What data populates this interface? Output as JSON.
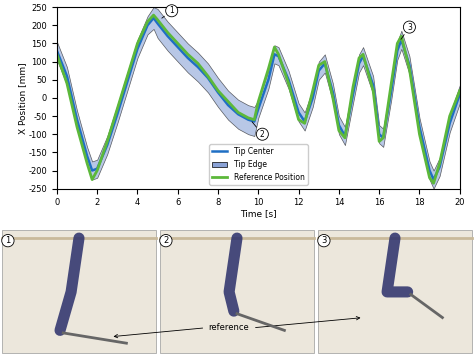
{
  "chart_data": {
    "type": "line",
    "xlabel": "Time [s]",
    "ylabel": "X Position [mm]",
    "x": [
      0,
      0.5,
      1,
      1.5,
      1.75,
      2,
      2.5,
      3,
      3.5,
      4,
      4.5,
      4.8,
      5,
      5.5,
      6,
      6.5,
      7,
      7.5,
      8,
      8.5,
      9,
      9.5,
      9.8,
      10,
      10.5,
      10.8,
      11,
      11.5,
      12,
      12.3,
      12.7,
      13,
      13.3,
      13.7,
      14,
      14.3,
      14.7,
      15,
      15.2,
      15.7,
      16,
      16.2,
      16.6,
      16.9,
      17.1,
      17.5,
      18,
      18.5,
      18.7,
      19,
      19.5,
      20
    ],
    "series": [
      {
        "name": "Tip Center",
        "color": "#1f6fc4",
        "type": "line",
        "values": [
          130,
          60,
          -60,
          -160,
          -200,
          -195,
          -130,
          -45,
          45,
          135,
          200,
          220,
          205,
          170,
          140,
          110,
          85,
          55,
          15,
          -20,
          -45,
          -60,
          -65,
          -30,
          50,
          120,
          115,
          50,
          -40,
          -65,
          0,
          75,
          95,
          15,
          -75,
          -105,
          10,
          95,
          115,
          35,
          -100,
          -110,
          20,
          130,
          160,
          90,
          -80,
          -200,
          -225,
          -190,
          -70,
          10
        ]
      },
      {
        "name": "Tip Edge",
        "color": "#8aa2d6",
        "type": "band",
        "lower": [
          105,
          35,
          -85,
          -185,
          -225,
          -220,
          -155,
          -70,
          20,
          110,
          175,
          190,
          165,
          130,
          100,
          70,
          45,
          15,
          -25,
          -60,
          -85,
          -100,
          -105,
          -55,
          25,
          95,
          90,
          25,
          -65,
          -90,
          -25,
          50,
          70,
          -10,
          -100,
          -130,
          -15,
          70,
          90,
          10,
          -125,
          -135,
          -5,
          105,
          135,
          65,
          -105,
          -225,
          -250,
          -215,
          -95,
          -15
        ],
        "upper": [
          155,
          85,
          -35,
          -135,
          -175,
          -170,
          -105,
          -20,
          70,
          160,
          225,
          250,
          245,
          210,
          180,
          150,
          125,
          95,
          55,
          20,
          -5,
          -20,
          -25,
          -5,
          75,
          145,
          140,
          75,
          -15,
          -40,
          25,
          100,
          120,
          40,
          -50,
          -80,
          35,
          120,
          140,
          60,
          -75,
          -85,
          45,
          155,
          185,
          115,
          -55,
          -175,
          -200,
          -165,
          -45,
          35
        ]
      },
      {
        "name": "Reference Position",
        "color": "#5cb83a",
        "type": "line",
        "values": [
          120,
          40,
          -80,
          -180,
          -225,
          -200,
          -120,
          -30,
          60,
          150,
          210,
          228,
          215,
          180,
          150,
          120,
          95,
          60,
          20,
          -10,
          -40,
          -55,
          -60,
          -10,
          80,
          140,
          120,
          40,
          -60,
          -70,
          20,
          90,
          100,
          0,
          -90,
          -110,
          30,
          110,
          120,
          20,
          -120,
          -110,
          40,
          150,
          170,
          80,
          -100,
          -220,
          -235,
          -180,
          -50,
          20
        ]
      }
    ],
    "annotations": [
      {
        "text": "1",
        "x": 5.1,
        "y": 215
      },
      {
        "text": "2",
        "x": 9.6,
        "y": -60
      },
      {
        "text": "3",
        "x": 17.0,
        "y": 155
      }
    ],
    "xlim": [
      0,
      20
    ],
    "xticks": [
      0,
      2,
      4,
      6,
      8,
      10,
      12,
      14,
      16,
      18,
      20
    ],
    "ylim": [
      -250,
      250
    ],
    "yticks": [
      -250,
      -200,
      -150,
      -100,
      -50,
      0,
      50,
      100,
      150,
      200,
      250
    ],
    "legend": "lower center",
    "grid": false
  },
  "panels": {
    "labels": [
      "1",
      "2",
      "3"
    ],
    "note": "reference"
  }
}
